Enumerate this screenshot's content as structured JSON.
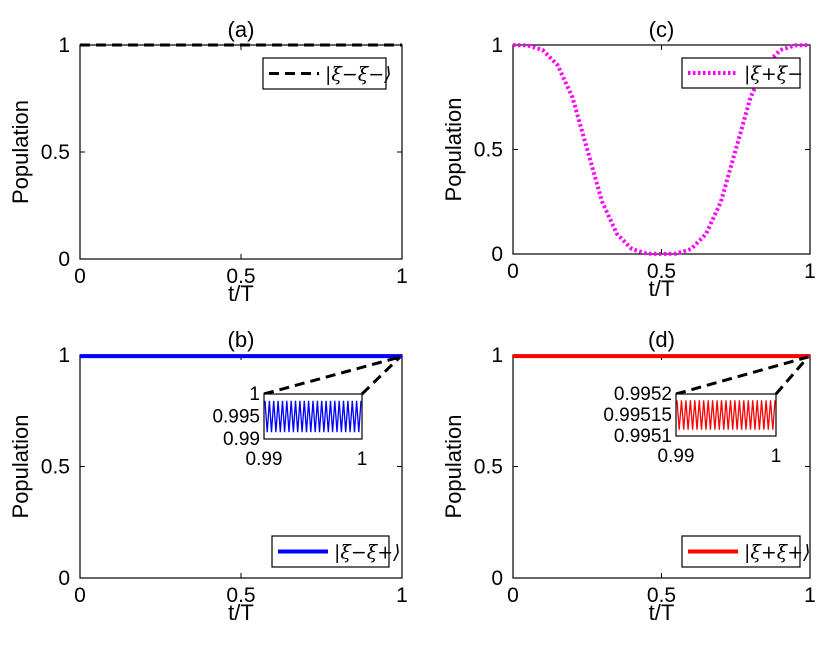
{
  "chart_data": [
    {
      "panel": "(a)",
      "type": "line",
      "title": "(a)",
      "xlabel": "t/T",
      "ylabel": "Population",
      "xlim": [
        0,
        1
      ],
      "ylim": [
        0,
        1
      ],
      "xticks": [
        "0",
        "0.5",
        "1"
      ],
      "yticks": [
        "0",
        "0.5",
        "1"
      ],
      "legend": {
        "placement": "top-right"
      },
      "series": [
        {
          "name": "|ξ−ξ−⟩",
          "color": "#000000",
          "style": "dashed",
          "x": [
            0,
            0.25,
            0.5,
            0.75,
            1
          ],
          "y": [
            1,
            1,
            1,
            1,
            1
          ]
        }
      ]
    },
    {
      "panel": "(b)",
      "type": "line",
      "title": "(b)",
      "xlabel": "t/T",
      "ylabel": "Population",
      "xlim": [
        0,
        1
      ],
      "ylim": [
        0,
        1
      ],
      "xticks": [
        "0",
        "0.5",
        "1"
      ],
      "yticks": [
        "0",
        "0.5",
        "1"
      ],
      "legend": {
        "placement": "bottom-right"
      },
      "series": [
        {
          "name": "|ξ−ξ+⟩",
          "color": "#0000ff",
          "style": "solid",
          "x": [
            0,
            0.25,
            0.5,
            0.75,
            1
          ],
          "y": [
            0.995,
            0.995,
            0.995,
            0.995,
            0.995
          ]
        }
      ],
      "inset": {
        "xlim": [
          0.99,
          1
        ],
        "ylim": [
          0.99,
          1
        ],
        "xticks": [
          "0.99",
          "1"
        ],
        "yticks": [
          "1",
          "0.995",
          "0.99"
        ],
        "oscillation": {
          "center": 0.995,
          "amplitude": 0.0035,
          "cycles": 22
        }
      }
    },
    {
      "panel": "(c)",
      "type": "line",
      "title": "(c)",
      "xlabel": "t/T",
      "ylabel": "Population",
      "xlim": [
        0,
        1
      ],
      "ylim": [
        0,
        1
      ],
      "xticks": [
        "0",
        "0.5",
        "1"
      ],
      "yticks": [
        "0",
        "0.5",
        "1"
      ],
      "legend": {
        "placement": "top-right"
      },
      "series": [
        {
          "name": "|ξ+ξ−",
          "color": "#ff00ff",
          "style": "dotted",
          "x": [
            0,
            0.05,
            0.1,
            0.15,
            0.2,
            0.25,
            0.3,
            0.35,
            0.4,
            0.45,
            0.5,
            0.55,
            0.6,
            0.65,
            0.7,
            0.75,
            0.8,
            0.85,
            0.9,
            0.95,
            1
          ],
          "y": [
            1,
            0.998,
            0.976,
            0.904,
            0.75,
            0.5,
            0.25,
            0.096,
            0.024,
            0.002,
            0,
            0.002,
            0.024,
            0.096,
            0.25,
            0.5,
            0.75,
            0.904,
            0.976,
            0.998,
            1
          ]
        }
      ]
    },
    {
      "panel": "(d)",
      "type": "line",
      "title": "(d)",
      "xlabel": "t/T",
      "ylabel": "Population",
      "xlim": [
        0,
        1
      ],
      "ylim": [
        0,
        1
      ],
      "xticks": [
        "0",
        "0.5",
        "1"
      ],
      "yticks": [
        "0",
        "0.5",
        "1"
      ],
      "legend": {
        "placement": "bottom-right"
      },
      "series": [
        {
          "name": "|ξ+ξ+⟩",
          "color": "#ff0000",
          "style": "solid",
          "x": [
            0,
            0.25,
            0.5,
            0.75,
            1
          ],
          "y": [
            0.9951,
            0.9951,
            0.9952,
            0.9951,
            0.9952
          ]
        }
      ],
      "inset": {
        "xlim": [
          0.99,
          1
        ],
        "ylim": [
          0.9951,
          0.9952
        ],
        "xticks": [
          "0.99",
          "1"
        ],
        "yticks": [
          "0.9952",
          "0.99515",
          "0.9951"
        ],
        "oscillation": {
          "center": 0.99515,
          "amplitude": 3.5e-05,
          "cycles": 22
        }
      }
    }
  ]
}
